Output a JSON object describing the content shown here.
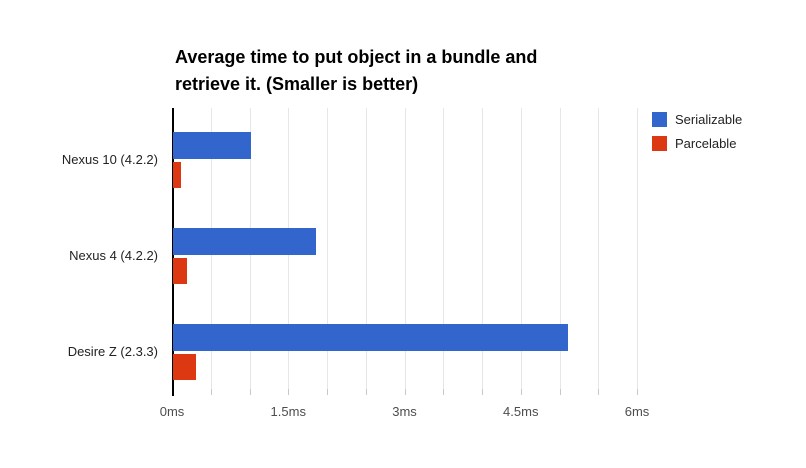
{
  "page": {
    "background": "#ffffff"
  },
  "chart_data": {
    "type": "bar",
    "orientation": "horizontal",
    "title": "Average time to put object in a bundle and retrieve it. (Smaller is better)",
    "title_lines": [
      "Average time to put object in a bundle and",
      "retrieve it. (Smaller is better)"
    ],
    "categories": [
      "Nexus 10 (4.2.2)",
      "Nexus 4 (4.2.2)",
      "Desire Z (2.3.3)"
    ],
    "series": [
      {
        "name": "Serializable",
        "color": "#3366cc",
        "values": [
          1.0,
          1.85,
          5.1
        ]
      },
      {
        "name": "Parcelable",
        "color": "#dc3912",
        "values": [
          0.1,
          0.18,
          0.3
        ]
      }
    ],
    "x_unit": "ms",
    "xlim": [
      0,
      6
    ],
    "x_tick_values": [
      0,
      1.5,
      3,
      4.5,
      6
    ],
    "x_tick_labels": [
      "0ms",
      "1.5ms",
      "3ms",
      "4.5ms",
      "6ms"
    ],
    "minor_grid_step_ms": 0.5,
    "grid": true,
    "legend_position": "right",
    "xlabel": "",
    "ylabel": ""
  },
  "colors": {
    "grid": "#e6e6e6",
    "minor_tick": "#c8c8c8",
    "axis": "#000000",
    "tick_text": "#4d4d4d",
    "category_text": "#222222",
    "title_text": "#000000"
  }
}
